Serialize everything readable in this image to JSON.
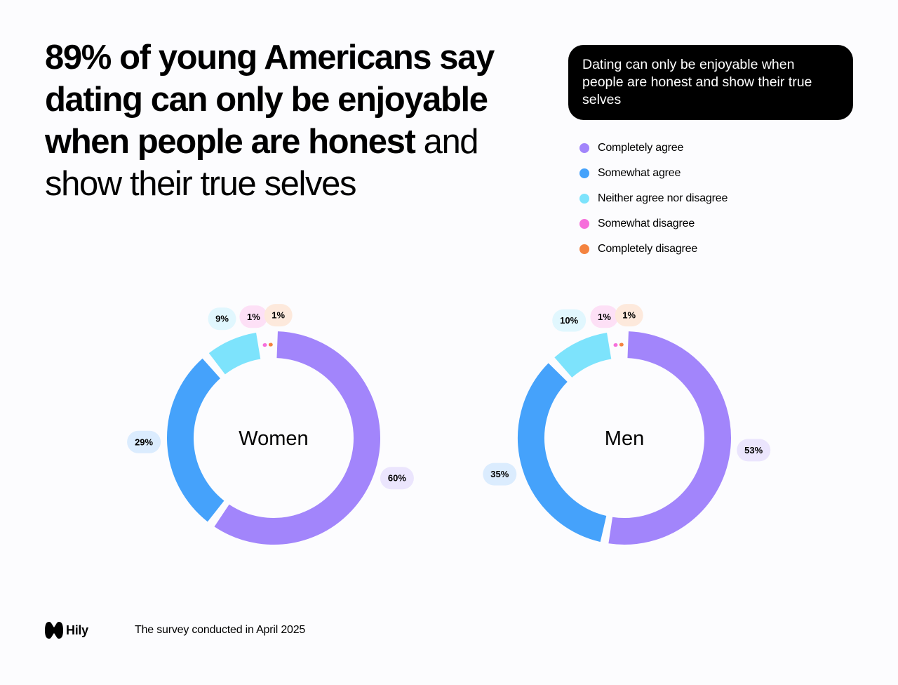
{
  "headline": {
    "bold": "89% of young Americans say dating can only be enjoyable when people are honest",
    "regular": " and show their true selves"
  },
  "question_box": "Dating can only be enjoyable when people are honest and show their true selves",
  "legend": [
    {
      "label": "Completely agree",
      "color": "#a285fb"
    },
    {
      "label": "Somewhat agree",
      "color": "#45a2fb"
    },
    {
      "label": "Neither agree nor disagree",
      "color": "#7de3fc"
    },
    {
      "label": "Somewhat disagree",
      "color": "#f66fdb"
    },
    {
      "label": "Completely disagree",
      "color": "#f4833f"
    }
  ],
  "chart_data": [
    {
      "type": "pie",
      "title": "Women",
      "categories": [
        "Completely agree",
        "Somewhat agree",
        "Neither agree nor disagree",
        "Somewhat disagree",
        "Completely disagree"
      ],
      "values": [
        60,
        29,
        9,
        1,
        1
      ],
      "labels": [
        "60%",
        "29%",
        "9%",
        "1%",
        "1%"
      ]
    },
    {
      "type": "pie",
      "title": "Men",
      "categories": [
        "Completely agree",
        "Somewhat agree",
        "Neither agree nor disagree",
        "Somewhat disagree",
        "Completely disagree"
      ],
      "values": [
        53,
        35,
        10,
        1,
        1
      ],
      "labels": [
        "53%",
        "35%",
        "10%",
        "1%",
        "1%"
      ]
    }
  ],
  "label_bg_colors": [
    "#ebe5fd",
    "#dbecfe",
    "#e1f7fe",
    "#fde0f6",
    "#fde9dc"
  ],
  "footer": {
    "brand": "Hily",
    "note": "The survey conducted in April 2025"
  }
}
